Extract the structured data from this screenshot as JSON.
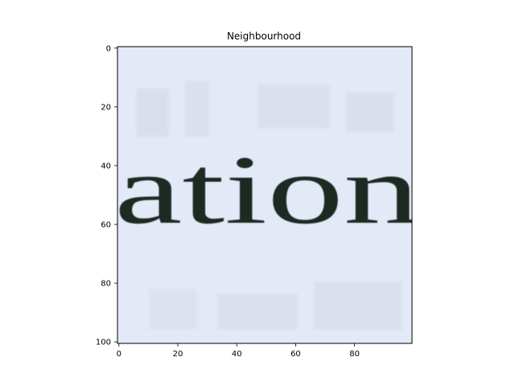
{
  "figure": {
    "title": "Neighbourhood"
  },
  "image": {
    "foreground_text": "ation",
    "foreground_color": "#1c2a22",
    "background_color": "#e3e9f7"
  },
  "axes": {
    "x_ticks": [
      "0",
      "20",
      "40",
      "60",
      "80"
    ],
    "y_ticks": [
      "0",
      "20",
      "40",
      "60",
      "80",
      "100"
    ],
    "xlim": [
      -0.5,
      99.5
    ],
    "ylim": [
      100.5,
      -0.5
    ]
  }
}
